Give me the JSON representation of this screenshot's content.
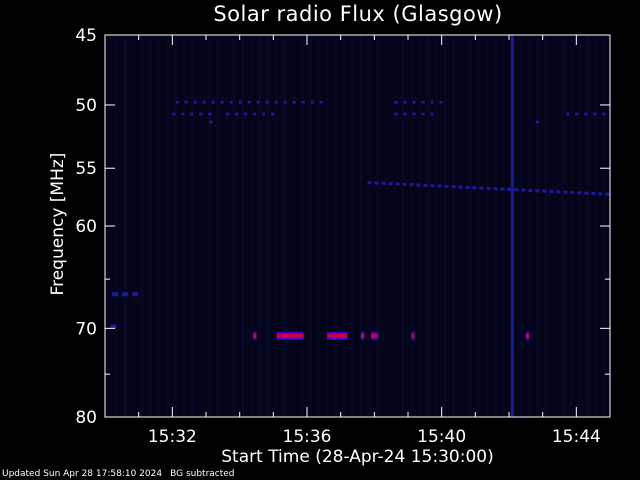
{
  "chart_data": {
    "type": "heatmap",
    "title": "Solar radio Flux (Glasgow)",
    "xlabel": "Start Time (28-Apr-24 15:30:00)",
    "ylabel": "Frequency [MHz]",
    "x_range_minutes": [
      0.0,
      15.0
    ],
    "x_ticks": [
      {
        "minute": 2,
        "label": "15:32"
      },
      {
        "minute": 6,
        "label": "15:36"
      },
      {
        "minute": 10,
        "label": "15:40"
      },
      {
        "minute": 14,
        "label": "15:44"
      }
    ],
    "y_scale": "log",
    "y_range_mhz": [
      45,
      80
    ],
    "y_ticks": [
      45,
      50,
      55,
      60,
      70,
      80
    ],
    "y_minor_ticks": [
      65,
      75
    ],
    "colors": {
      "background": "#000000",
      "plot_background": "#05051a",
      "axis": "#ffffff",
      "weak_signal": "#1a1aa0",
      "strong_signal": "#cc0044",
      "burst_edge": "#4400cc"
    },
    "features": {
      "dotted_lines": [
        {
          "freq_mhz": 49.8,
          "start_min": 2.1,
          "end_min": 6.5
        },
        {
          "freq_mhz": 49.8,
          "start_min": 8.6,
          "end_min": 10.1
        },
        {
          "freq_mhz": 50.7,
          "start_min": 2.0,
          "end_min": 3.3
        },
        {
          "freq_mhz": 50.7,
          "start_min": 3.6,
          "end_min": 5.1
        },
        {
          "freq_mhz": 50.7,
          "start_min": 8.6,
          "end_min": 9.8
        },
        {
          "freq_mhz": 50.7,
          "start_min": 13.7,
          "end_min": 15.0
        },
        {
          "freq_mhz": 51.3,
          "start_min": 12.8,
          "end_min": 13.0
        },
        {
          "freq_mhz": 51.3,
          "start_min": 3.1,
          "end_min": 3.3
        }
      ],
      "drift_line": {
        "start_min": 7.8,
        "start_mhz": 56.2,
        "end_min": 15.0,
        "end_mhz": 57.2
      },
      "isolated_marks": [
        {
          "minute": 0.3,
          "freq_mhz": 66.5
        },
        {
          "minute": 0.6,
          "freq_mhz": 66.5
        },
        {
          "minute": 0.9,
          "freq_mhz": 66.5
        },
        {
          "minute": 0.25,
          "freq_mhz": 69.8
        }
      ],
      "vertical_line": {
        "minute": 12.1,
        "freq_from_mhz": 45,
        "freq_to_mhz": 80
      },
      "strong_band_freq_mhz": 70.8,
      "strong_band_segments": [
        {
          "start_min": 4.4,
          "end_min": 4.5
        },
        {
          "start_min": 5.1,
          "end_min": 5.9
        },
        {
          "start_min": 6.6,
          "end_min": 7.2
        },
        {
          "start_min": 7.6,
          "end_min": 7.7
        },
        {
          "start_min": 7.9,
          "end_min": 8.1
        },
        {
          "start_min": 9.1,
          "end_min": 9.15
        },
        {
          "start_min": 12.5,
          "end_min": 12.6
        }
      ]
    }
  },
  "footer": {
    "updated": "Updated Sun Apr 28 17:58:10 2024",
    "mode": "BG subtracted"
  }
}
